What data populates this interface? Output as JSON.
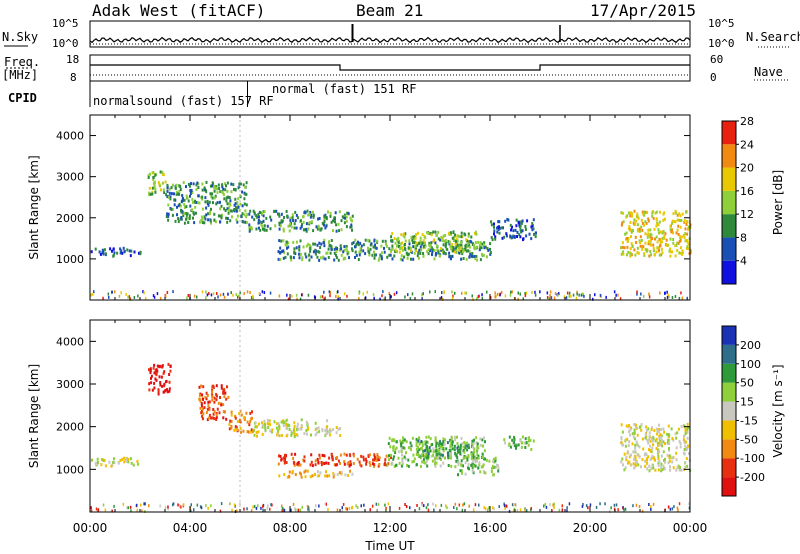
{
  "header": {
    "station": "Adak West (fitACF)",
    "beam": "Beam 21",
    "date": "17/Apr/2015"
  },
  "top_panels": {
    "nsky_label": "N.Sky",
    "nsearch_label": "N.Search",
    "freq_label_line1": "Freq.",
    "freq_label_line2": "[MHz]",
    "nave_label": "Nave",
    "cpid_label": "CPID",
    "nsky_ticks": [
      "10^5",
      "10^0"
    ],
    "nsearch_ticks": [
      "10^5",
      "10^0"
    ],
    "freq_ticks": [
      "18",
      "8"
    ],
    "nave_ticks": [
      "60",
      "0"
    ],
    "cpid_segments": [
      {
        "label": "normalsound (fast) 157 RF",
        "start_hour": 0
      },
      {
        "label": "normal (fast) 151 RF",
        "start_hour": 6.3
      }
    ],
    "freq_steps": [
      {
        "from": 0,
        "to": 10.0,
        "level": "low"
      },
      {
        "from": 10.0,
        "to": 18.0,
        "level": "lower"
      },
      {
        "from": 18.0,
        "to": 24.0,
        "level": "low"
      }
    ]
  },
  "chart_data": [
    {
      "type": "heatmap",
      "name": "power",
      "ylabel": "Slant Range [km]",
      "ylim": [
        0,
        4500
      ],
      "yticks": [
        "1000",
        "2000",
        "3000",
        "4000"
      ],
      "xlim": [
        "00:00",
        "24:00"
      ],
      "colorbar_label": "Power [dB]",
      "colorbar_ticks": [
        "4",
        "8",
        "12",
        "16",
        "20",
        "24",
        "28"
      ],
      "colorbar_colors": [
        "#1010e0",
        "#1a4fb5",
        "#2e8a3a",
        "#8fcf3a",
        "#e8c800",
        "#f08a10",
        "#e82010"
      ],
      "regions": [
        {
          "t0": 2.3,
          "t1": 3.0,
          "r0": 2600,
          "r1": 3200,
          "level": 3
        },
        {
          "t0": 3.0,
          "t1": 6.3,
          "r0": 1900,
          "r1": 2900,
          "level": 2
        },
        {
          "t0": 6.3,
          "t1": 10.5,
          "r0": 1700,
          "r1": 2200,
          "level": 2
        },
        {
          "t0": 7.5,
          "t1": 16.0,
          "r0": 1000,
          "r1": 1500,
          "level": 2
        },
        {
          "t0": 12.0,
          "t1": 15.5,
          "r0": 1200,
          "r1": 1700,
          "level": 3
        },
        {
          "t0": 16.0,
          "t1": 17.8,
          "r0": 1500,
          "r1": 2000,
          "level": 1
        },
        {
          "t0": 21.2,
          "t1": 24.0,
          "r0": 1100,
          "r1": 2200,
          "level": 4
        },
        {
          "t0": 0.0,
          "t1": 2.0,
          "r0": 1100,
          "r1": 1300,
          "level": 1
        }
      ]
    },
    {
      "type": "heatmap",
      "name": "velocity",
      "ylabel": "Slant Range [km]",
      "xlabel": "Time UT",
      "ylim": [
        0,
        4500
      ],
      "yticks": [
        "1000",
        "2000",
        "3000",
        "4000"
      ],
      "xticks": [
        "00:00",
        "04:00",
        "08:00",
        "12:00",
        "16:00",
        "20:00",
        "00:00"
      ],
      "colorbar_label": "Velocity [m s⁻¹]",
      "colorbar_ticks": [
        "200",
        "100",
        "50",
        "15",
        "-15",
        "-50",
        "-100",
        "-200"
      ],
      "colorbar_colors": [
        "#1a33b5",
        "#2e6e8a",
        "#2e9a3a",
        "#8fcf3a",
        "#c8c8c0",
        "#f0c000",
        "#f08a10",
        "#e83010",
        "#e01010"
      ],
      "regions": [
        {
          "t0": 2.3,
          "t1": 3.2,
          "r0": 2800,
          "r1": 3500,
          "level": 8
        },
        {
          "t0": 4.3,
          "t1": 5.5,
          "r0": 2200,
          "r1": 3000,
          "level": 7
        },
        {
          "t0": 5.5,
          "t1": 6.5,
          "r0": 1900,
          "r1": 2400,
          "level": 6
        },
        {
          "t0": 6.5,
          "t1": 10.0,
          "r0": 1800,
          "r1": 2200,
          "level": 4
        },
        {
          "t0": 7.5,
          "t1": 12.0,
          "r0": 1100,
          "r1": 1400,
          "level": 7
        },
        {
          "t0": 7.5,
          "t1": 10.5,
          "r0": 850,
          "r1": 1000,
          "level": 5
        },
        {
          "t0": 11.8,
          "t1": 15.8,
          "r0": 1100,
          "r1": 1800,
          "level": 3
        },
        {
          "t0": 13.0,
          "t1": 15.5,
          "r0": 1300,
          "r1": 1700,
          "level": 2
        },
        {
          "t0": 14.5,
          "t1": 16.3,
          "r0": 900,
          "r1": 1300,
          "level": 3
        },
        {
          "t0": 16.5,
          "t1": 17.8,
          "r0": 1500,
          "r1": 1800,
          "level": 3
        },
        {
          "t0": 21.2,
          "t1": 24.0,
          "r0": 1000,
          "r1": 2100,
          "level": 4
        },
        {
          "t0": 0.0,
          "t1": 2.0,
          "r0": 1100,
          "r1": 1300,
          "level": 4
        }
      ]
    }
  ]
}
